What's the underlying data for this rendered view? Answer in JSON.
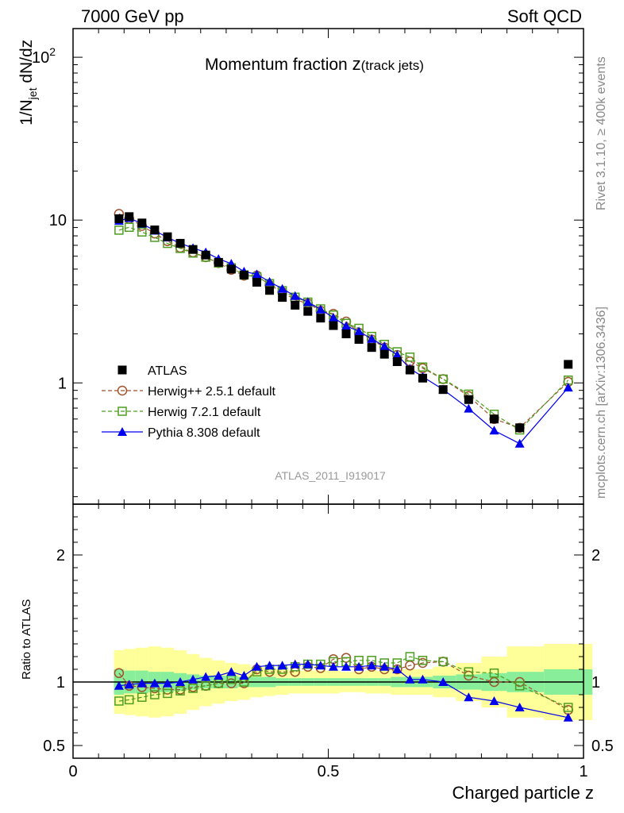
{
  "header": {
    "left": "7000 GeV pp",
    "right": "Soft QCD"
  },
  "side": {
    "rivet": "Rivet 3.1.10, ≥ 400k events",
    "mcplots": "mcplots.cern.ch [arXiv:1306.3436]"
  },
  "chart_data": {
    "type": "scatter",
    "title_main": "Momentum fraction ",
    "title_z": "z",
    "title_sub": "(track jets)",
    "analysis_label": "ATLAS_2011_I919017",
    "xlabel": "Charged particle z",
    "ylabel_main": "1/N",
    "ylabel_sub": "jet",
    "ylabel_end": " dN/dz",
    "ratio_ylabel": "Ratio to ATLAS",
    "xlim": [
      0,
      1
    ],
    "ylim_main": [
      0.18,
      150
    ],
    "ylog_main": true,
    "ylim_ratio": [
      0.4,
      2.4
    ],
    "main_y_ticks": [
      {
        "value": 1,
        "label": "1"
      },
      {
        "value": 10,
        "label": "10"
      },
      {
        "value": 100,
        "label": "10",
        "sup": "2"
      }
    ],
    "x_ticks": [
      {
        "value": 0,
        "label": "0"
      },
      {
        "value": 0.5,
        "label": "0.5"
      },
      {
        "value": 1,
        "label": "1"
      }
    ],
    "ratio_y_ticks": [
      {
        "value": 0.5,
        "label": "0.5"
      },
      {
        "value": 1,
        "label": "1"
      },
      {
        "value": 2,
        "label": "2"
      }
    ],
    "x": [
      0.09,
      0.11,
      0.135,
      0.16,
      0.185,
      0.21,
      0.235,
      0.26,
      0.285,
      0.31,
      0.335,
      0.36,
      0.385,
      0.41,
      0.435,
      0.46,
      0.485,
      0.51,
      0.535,
      0.56,
      0.585,
      0.61,
      0.635,
      0.66,
      0.685,
      0.725,
      0.775,
      0.825,
      0.875,
      0.97
    ],
    "atlas_values": [
      10.2,
      10.5,
      9.6,
      8.7,
      7.9,
      7.2,
      6.6,
      6.1,
      5.5,
      5.0,
      4.6,
      4.15,
      3.7,
      3.35,
      3.0,
      2.75,
      2.5,
      2.25,
      2.0,
      1.85,
      1.65,
      1.5,
      1.35,
      1.2,
      1.07,
      0.91,
      0.79,
      0.6,
      0.53,
      1.3
    ],
    "atlas_band_inner": [
      0.1,
      0.09,
      0.09,
      0.08,
      0.08,
      0.07,
      0.06,
      0.05,
      0.05,
      0.05,
      0.04,
      0.04,
      0.04,
      0.03,
      0.03,
      0.03,
      0.03,
      0.03,
      0.03,
      0.03,
      0.03,
      0.03,
      0.04,
      0.04,
      0.04,
      0.05,
      0.06,
      0.07,
      0.08,
      0.1
    ],
    "atlas_band_outer": [
      0.25,
      0.26,
      0.27,
      0.28,
      0.27,
      0.25,
      0.22,
      0.19,
      0.17,
      0.15,
      0.14,
      0.12,
      0.11,
      0.1,
      0.09,
      0.09,
      0.09,
      0.09,
      0.08,
      0.08,
      0.09,
      0.09,
      0.1,
      0.1,
      0.1,
      0.12,
      0.15,
      0.2,
      0.28,
      0.3
    ],
    "series": [
      {
        "name": "ATLAS",
        "marker": "square-filled",
        "color": "#000000"
      },
      {
        "name": "Herwig++ 2.5.1 default",
        "marker": "circle-open",
        "line": "dashed",
        "color": "#a0522d",
        "ratio": [
          1.07,
          0.97,
          0.96,
          0.95,
          0.94,
          0.94,
          0.96,
          0.97,
          0.99,
          0.99,
          0.99,
          1.1,
          1.08,
          1.08,
          1.08,
          1.12,
          1.11,
          1.18,
          1.19,
          1.1,
          1.12,
          1.1,
          1.1,
          1.13,
          1.15,
          1.16,
          1.05,
          1.0,
          1.0,
          0.78
        ]
      },
      {
        "name": "Herwig 7.2.1 default",
        "marker": "square-open",
        "line": "dashed",
        "color": "#4d9e1f",
        "ratio": [
          0.85,
          0.86,
          0.88,
          0.9,
          0.91,
          0.93,
          0.95,
          0.97,
          0.99,
          1.02,
          1.0,
          1.08,
          1.1,
          1.1,
          1.12,
          1.14,
          1.14,
          1.16,
          1.16,
          1.17,
          1.17,
          1.15,
          1.15,
          1.2,
          1.17,
          1.16,
          1.08,
          1.07,
          0.97,
          0.8
        ]
      },
      {
        "name": "Pythia 8.308 default",
        "marker": "triangle-filled",
        "line": "solid",
        "color": "#0000ee",
        "ratio": [
          0.97,
          0.98,
          0.99,
          0.99,
          0.99,
          1.0,
          1.02,
          1.04,
          1.05,
          1.08,
          1.05,
          1.12,
          1.13,
          1.13,
          1.14,
          1.14,
          1.13,
          1.12,
          1.12,
          1.12,
          1.13,
          1.12,
          1.1,
          1.02,
          1.02,
          1.0,
          0.88,
          0.85,
          0.8,
          0.72
        ]
      }
    ]
  }
}
